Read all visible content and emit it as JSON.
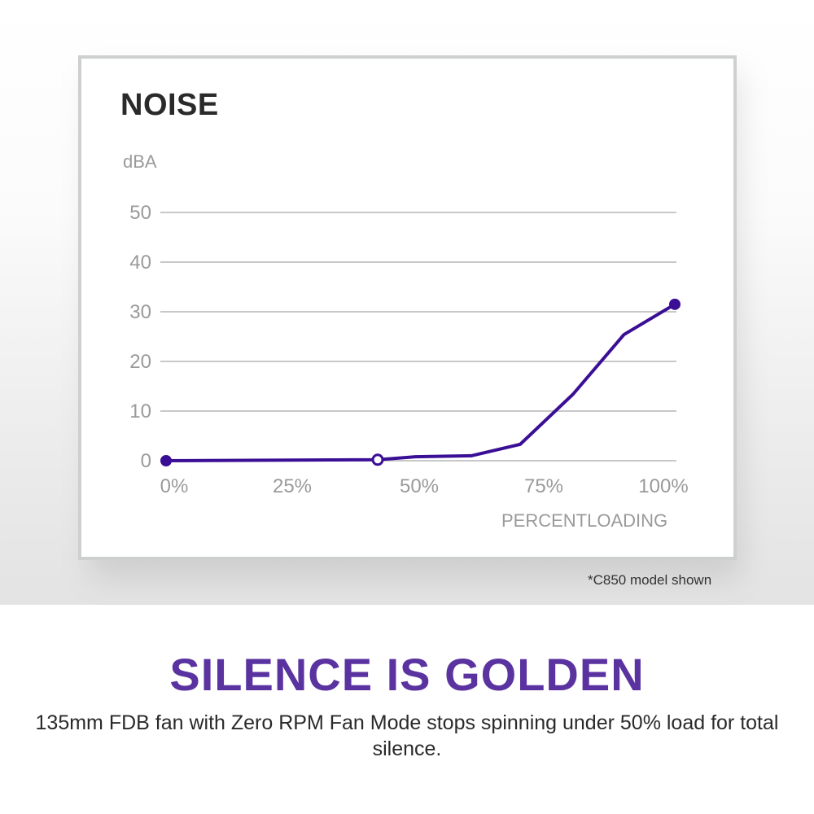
{
  "chart_data": {
    "type": "line",
    "title": "NOISE",
    "xlabel": "PERCENTLOADING",
    "ylabel": "dBA",
    "x_tick_labels": [
      "0%",
      "25%",
      "50%",
      "75%",
      "100%"
    ],
    "y_tick_labels": [
      "50",
      "40",
      "30",
      "20",
      "10",
      "0"
    ],
    "xlim": [
      0,
      100
    ],
    "ylim": [
      0,
      50
    ],
    "grid": "horizontal",
    "legend": "none",
    "series": [
      {
        "name": "Noise (dBA)",
        "color": "#3a0f96",
        "x": [
          0,
          41.6,
          49,
          60,
          69.6,
          80,
          90,
          100
        ],
        "y": [
          0,
          0.2,
          0.8,
          1.0,
          3.3,
          13.4,
          25.4,
          31.5
        ],
        "markers": [
          {
            "x": 0,
            "y": 0,
            "style": "filled"
          },
          {
            "x": 41.6,
            "y": 0.2,
            "style": "hollow"
          },
          {
            "x": 100,
            "y": 31.5,
            "style": "filled"
          }
        ]
      }
    ]
  },
  "card": {
    "title": "NOISE",
    "y_unit": "dBA",
    "x_title": "PERCENTLOADING"
  },
  "footnote": "*C850 model shown",
  "headline": "SILENCE IS GOLDEN",
  "description": "135mm FDB fan with Zero RPM Fan Mode stops spinning under 50% load for total silence.",
  "colors": {
    "accent": "#5a33a0",
    "line": "#3a0f96",
    "grid": "#b5b5b5",
    "axis_text": "#9a9a9a"
  }
}
